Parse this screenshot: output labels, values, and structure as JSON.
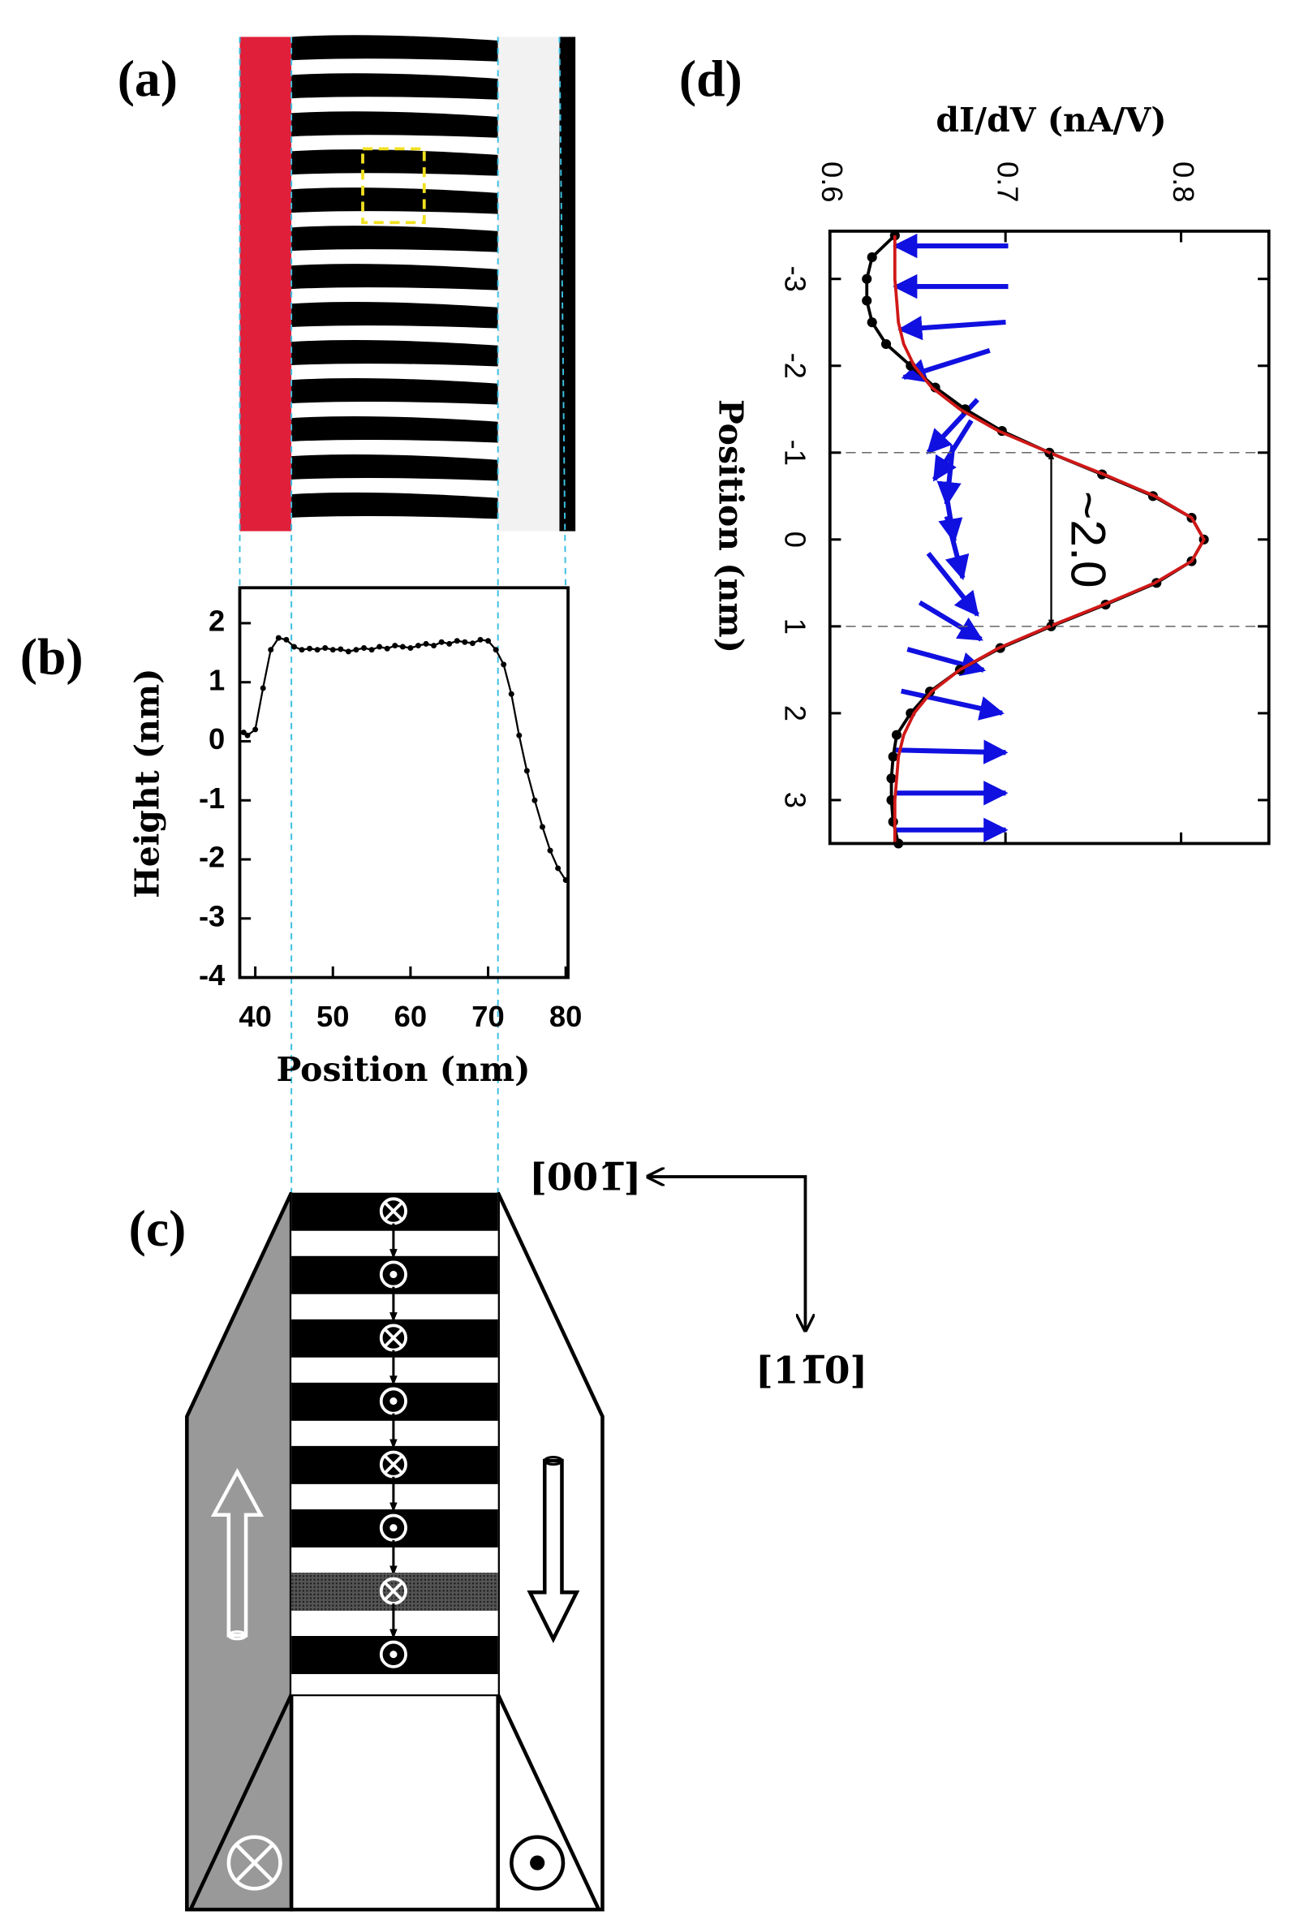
{
  "panels": {
    "a": "(a)",
    "b": "(b)",
    "c": "(c)",
    "d": "(d)"
  },
  "diagram": {
    "axis_horizontal": "[001̅]",
    "axis_vertical": "[11̅0]"
  },
  "chart_data": [
    {
      "type": "line",
      "x_label": "Position (nm)",
      "y_label": "Height (nm)",
      "x": [
        38.5,
        39,
        40,
        41,
        42,
        43,
        44,
        45,
        46,
        47,
        48,
        49,
        50,
        51,
        52,
        53,
        54,
        55,
        56,
        57,
        58,
        59,
        60,
        61,
        62,
        63,
        64,
        65,
        66,
        67,
        68,
        69,
        70,
        71,
        72,
        73,
        74,
        75,
        76,
        77,
        78,
        79,
        80
      ],
      "series": [
        {
          "color": "#000000",
          "markers": true,
          "values": [
            0.15,
            0.1,
            0.2,
            0.9,
            1.55,
            1.75,
            1.72,
            1.6,
            1.55,
            1.57,
            1.55,
            1.58,
            1.55,
            1.56,
            1.52,
            1.55,
            1.58,
            1.55,
            1.6,
            1.57,
            1.62,
            1.6,
            1.58,
            1.62,
            1.65,
            1.62,
            1.68,
            1.65,
            1.7,
            1.68,
            1.66,
            1.72,
            1.7,
            1.55,
            1.3,
            0.8,
            0.1,
            -0.5,
            -1.0,
            -1.45,
            -1.85,
            -2.15,
            -2.35
          ]
        }
      ],
      "xlim": [
        38,
        80.3
      ],
      "xticks": [
        40,
        50,
        60,
        70,
        80
      ],
      "ylim": [
        -4,
        2.6
      ],
      "yticks": [
        -4,
        -3,
        -2,
        -1,
        0,
        1,
        2
      ]
    },
    {
      "type": "line",
      "swap_axes": true,
      "x_label": "Position (nm)",
      "y_label": "dI/dV (nA/V)",
      "x": [
        -3.5,
        -3.25,
        -3,
        -2.75,
        -2.5,
        -2.25,
        -2,
        -1.75,
        -1.5,
        -1.25,
        -1,
        -0.75,
        -0.5,
        -0.25,
        0,
        0.25,
        0.5,
        0.75,
        1,
        1.25,
        1.5,
        1.75,
        2,
        2.25,
        2.5,
        2.75,
        3,
        3.25,
        3.5
      ],
      "series": [
        {
          "color": "#000000",
          "markers": true,
          "values": [
            0.637,
            0.624,
            0.621,
            0.621,
            0.624,
            0.632,
            0.646,
            0.66,
            0.677,
            0.698,
            0.725,
            0.755,
            0.784,
            0.806,
            0.813,
            0.806,
            0.786,
            0.757,
            0.726,
            0.697,
            0.674,
            0.657,
            0.646,
            0.638,
            0.636,
            0.635,
            0.635,
            0.636,
            0.639
          ]
        },
        {
          "color": "#d01818",
          "markers": false,
          "values": [
            0.637,
            0.637,
            0.637,
            0.638,
            0.639,
            0.642,
            0.648,
            0.658,
            0.674,
            0.696,
            0.725,
            0.756,
            0.785,
            0.806,
            0.813,
            0.806,
            0.785,
            0.756,
            0.725,
            0.696,
            0.674,
            0.658,
            0.648,
            0.642,
            0.639,
            0.638,
            0.637,
            0.637,
            0.637
          ]
        }
      ],
      "xlim": [
        -3.55,
        3.5
      ],
      "xticks": [
        -3,
        -2,
        -1,
        0,
        1,
        2,
        3
      ],
      "ylim": [
        0.6,
        0.85
      ],
      "yticks": [
        0.6,
        0.7,
        0.8
      ],
      "reference_lines": [
        -1,
        1
      ],
      "annotation": "~2.0"
    }
  ]
}
